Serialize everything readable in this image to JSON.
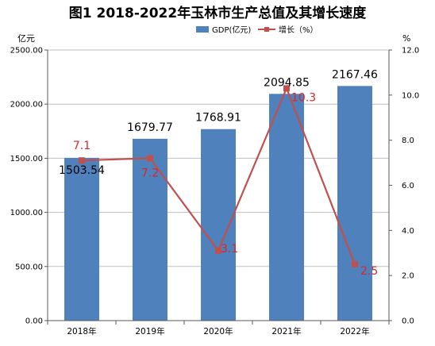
{
  "chart_data": {
    "type": "bar",
    "title": "图1  2018-2022年玉林市生产总值及其增长速度",
    "categories": [
      "2018年",
      "2019年",
      "2020年",
      "2021年",
      "2022年"
    ],
    "series": [
      {
        "name": "GDP(亿元)",
        "type": "bar",
        "axis": "left",
        "values": [
          1503.54,
          1679.77,
          1768.91,
          2094.85,
          2167.46
        ],
        "labels": [
          "1503.54",
          "1679.77",
          "1768.91",
          "2094.85",
          "2167.46"
        ],
        "color": "#4f81bd"
      },
      {
        "name": "增长（%）",
        "type": "line",
        "axis": "right",
        "values": [
          7.1,
          7.2,
          3.1,
          10.3,
          2.5
        ],
        "labels": [
          "7.1",
          "7.2",
          "3.1",
          "10.3",
          "2.5"
        ],
        "color": "#c0504d"
      }
    ],
    "y_left": {
      "unit": "亿元",
      "range": [
        0,
        2500
      ],
      "ticks": [
        "0.00",
        "500.00",
        "1000.00",
        "1500.00",
        "2000.00",
        "2500.00"
      ],
      "tick_values": [
        0,
        500,
        1000,
        1500,
        2000,
        2500
      ]
    },
    "y_right": {
      "unit": "%",
      "range": [
        0,
        12
      ],
      "ticks": [
        "0.0",
        "2.0",
        "4.0",
        "6.0",
        "8.0",
        "10.0",
        "12.0"
      ],
      "tick_values": [
        0,
        2,
        4,
        6,
        8,
        10,
        12
      ]
    },
    "grid": true,
    "legend_position": "top-center",
    "label_color_line": "#d62728"
  }
}
